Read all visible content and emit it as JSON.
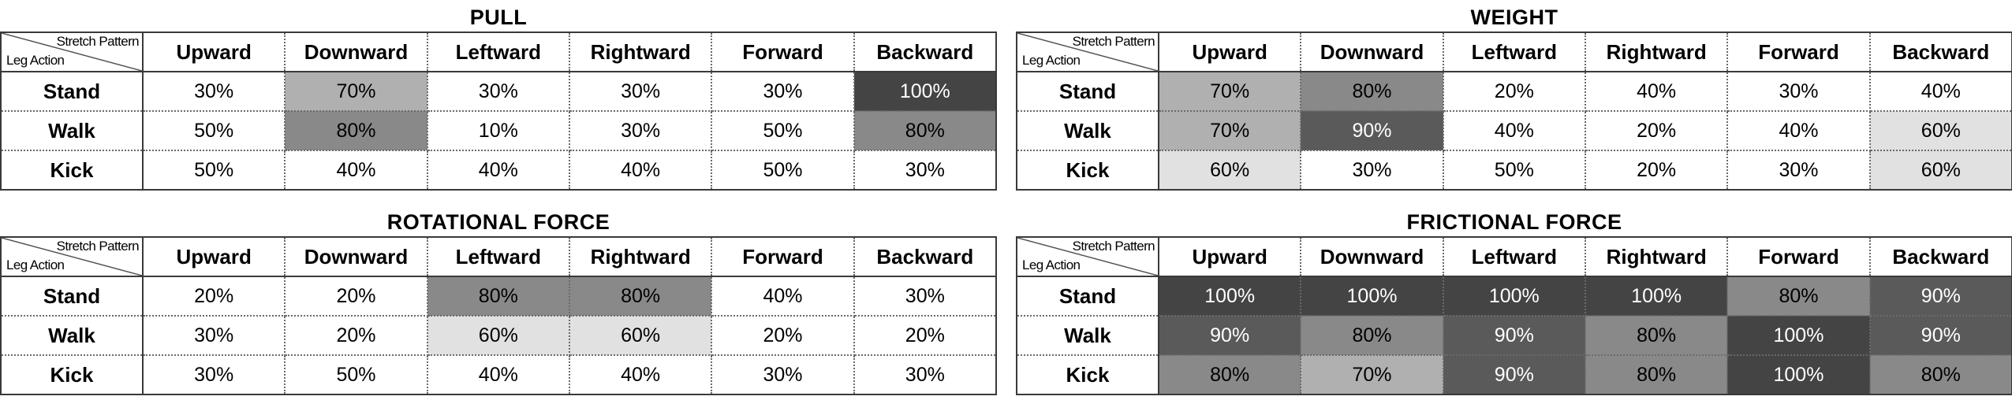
{
  "chart_data": [
    {
      "type": "heatmap",
      "title": "PULL",
      "corner_col_label": "Stretch Pattern",
      "corner_row_label": "Leg Action",
      "columns": [
        "Upward",
        "Downward",
        "Leftward",
        "Rightward",
        "Forward",
        "Backward"
      ],
      "rows": [
        "Stand",
        "Walk",
        "Kick"
      ],
      "values": [
        [
          30,
          70,
          30,
          30,
          30,
          100
        ],
        [
          50,
          80,
          10,
          30,
          50,
          80
        ],
        [
          50,
          40,
          40,
          40,
          50,
          30
        ]
      ],
      "value_suffix": "%"
    },
    {
      "type": "heatmap",
      "title": "WEIGHT",
      "corner_col_label": "Stretch Pattern",
      "corner_row_label": "Leg Action",
      "columns": [
        "Upward",
        "Downward",
        "Leftward",
        "Rightward",
        "Forward",
        "Backward"
      ],
      "rows": [
        "Stand",
        "Walk",
        "Kick"
      ],
      "values": [
        [
          70,
          80,
          20,
          40,
          30,
          40
        ],
        [
          70,
          90,
          40,
          20,
          40,
          60
        ],
        [
          60,
          30,
          50,
          20,
          30,
          60
        ]
      ],
      "value_suffix": "%"
    },
    {
      "type": "heatmap",
      "title": "ROTATIONAL FORCE",
      "corner_col_label": "Stretch Pattern",
      "corner_row_label": "Leg Action",
      "columns": [
        "Upward",
        "Downward",
        "Leftward",
        "Rightward",
        "Forward",
        "Backward"
      ],
      "rows": [
        "Stand",
        "Walk",
        "Kick"
      ],
      "values": [
        [
          20,
          20,
          80,
          80,
          40,
          30
        ],
        [
          30,
          20,
          60,
          60,
          20,
          20
        ],
        [
          30,
          50,
          40,
          40,
          30,
          30
        ]
      ],
      "value_suffix": "%"
    },
    {
      "type": "heatmap",
      "title": "FRICTIONAL FORCE",
      "corner_col_label": "Stretch Pattern",
      "corner_row_label": "Leg Action",
      "columns": [
        "Upward",
        "Downward",
        "Leftward",
        "Rightward",
        "Forward",
        "Backward"
      ],
      "rows": [
        "Stand",
        "Walk",
        "Kick"
      ],
      "values": [
        [
          100,
          100,
          100,
          100,
          80,
          90
        ],
        [
          90,
          80,
          90,
          80,
          100,
          90
        ],
        [
          80,
          70,
          90,
          80,
          100,
          80
        ]
      ],
      "value_suffix": "%"
    }
  ],
  "colors": {
    "shade_100": "#444444",
    "shade_90": "#5a5a5a",
    "shade_80": "#898989",
    "shade_70": "#b0b0b0",
    "shade_60": "#e1e1e1",
    "no_shade": "#ffffff"
  }
}
